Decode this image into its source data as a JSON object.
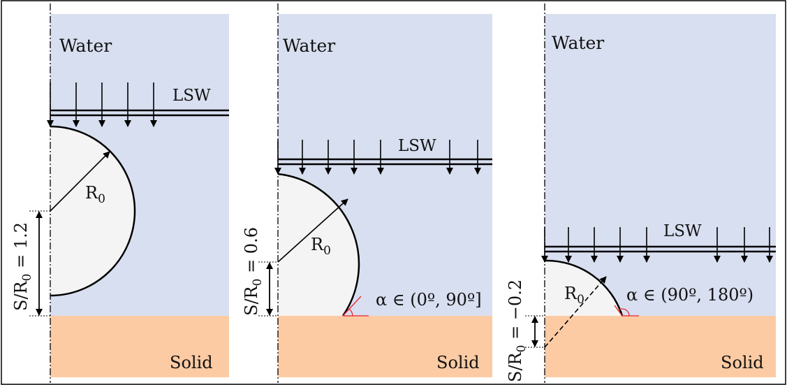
{
  "colors": {
    "water": "#d8dff0",
    "solid": "#fccba4",
    "bubble": "#f4f4f4",
    "line": "#000000",
    "angle": "#e8262a"
  },
  "panels": [
    {
      "water": "Water",
      "lsw": "LSW",
      "solid": "Solid",
      "radius_base": "R",
      "radius_sub": "0",
      "angle_label": "",
      "ratio_value": "1.2"
    },
    {
      "water": "Water",
      "lsw": "LSW",
      "solid": "Solid",
      "radius_base": "R",
      "radius_sub": "0",
      "angle_label": "α ∈ (0º, 90º]",
      "ratio_value": "0.6"
    },
    {
      "water": "Water",
      "lsw": "LSW",
      "solid": "Solid",
      "radius_base": "R",
      "radius_sub": "0",
      "angle_label": "α ∈ (90º, 180º)",
      "ratio_value": "−0.2"
    }
  ],
  "ratio_prefix": "S/R",
  "ratio_sub": "0",
  "ratio_eq": " = "
}
